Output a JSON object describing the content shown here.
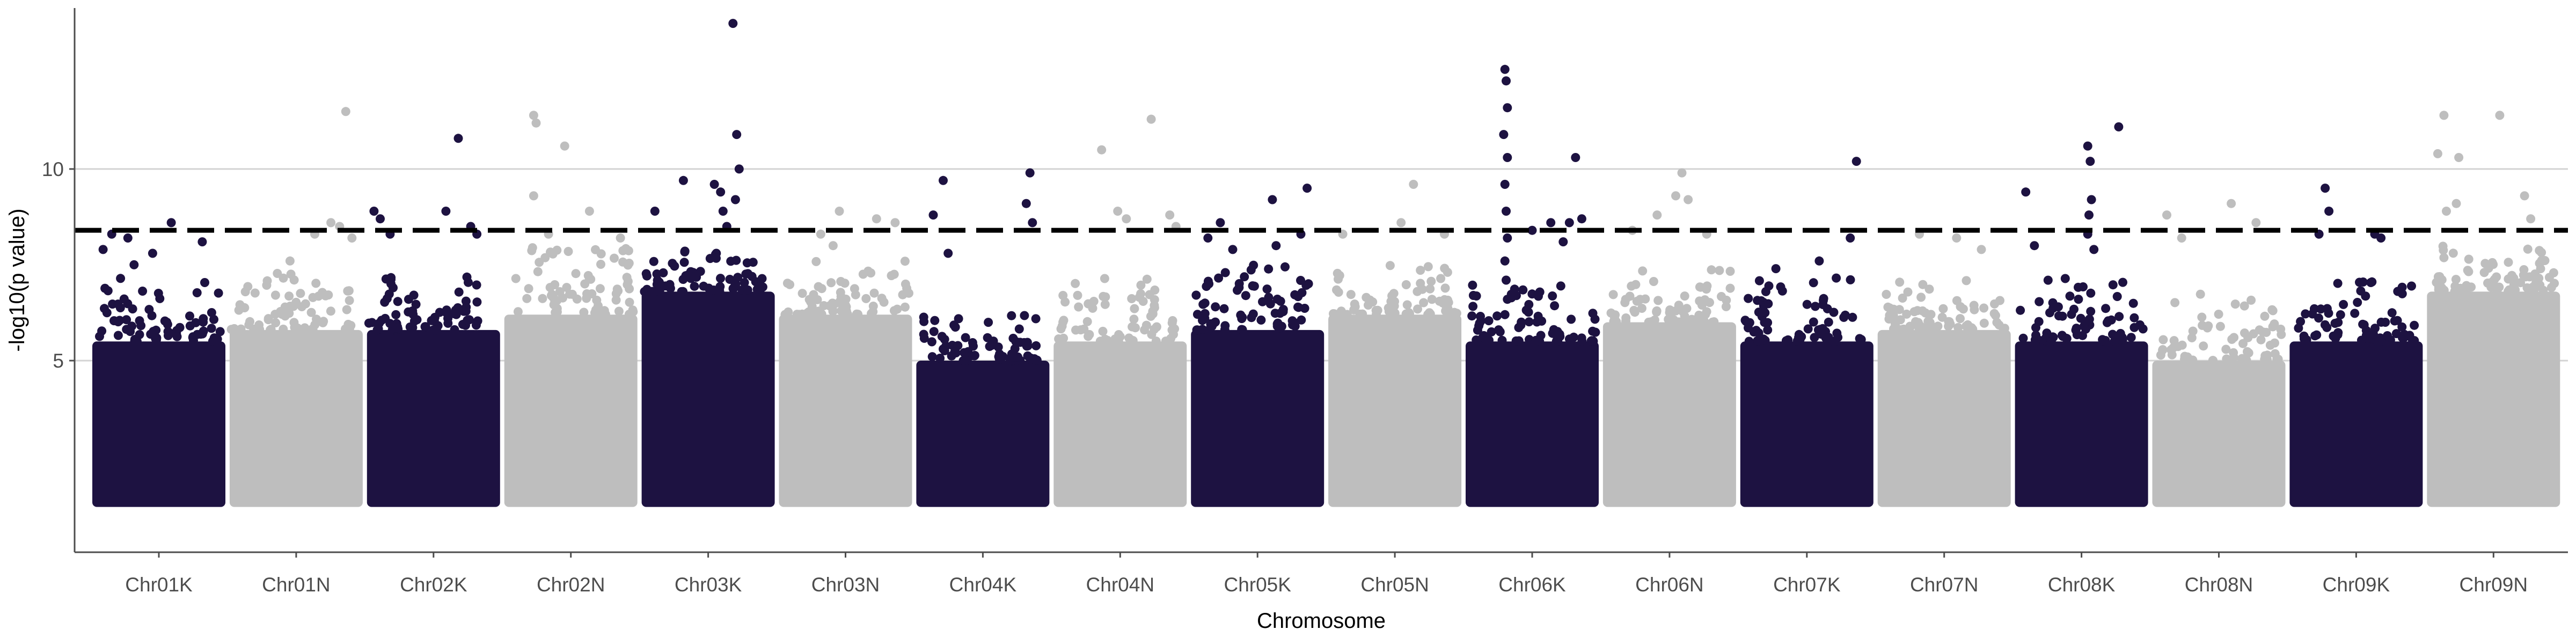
{
  "chart_data": {
    "type": "scatter",
    "subtype": "manhattan",
    "title": "",
    "xlabel": "Chromosome",
    "ylabel": "-log10(p value)",
    "ylim": [
      0,
      14.2
    ],
    "yticks": [
      5,
      10
    ],
    "ytick_labels": [
      "5",
      "10"
    ],
    "grid": "horizontal-major",
    "threshold": 8.4,
    "threshold_style": "dashed",
    "baseline": 1.3,
    "colors": {
      "dark": "#1d1241",
      "light": "#bebebe",
      "threshold": "#000000",
      "grid": "#d3d3d3",
      "axis": "#4d4d4d"
    },
    "categories": [
      "Chr01K",
      "Chr01N",
      "Chr02K",
      "Chr02N",
      "Chr03K",
      "Chr03N",
      "Chr04K",
      "Chr04N",
      "Chr05K",
      "Chr05N",
      "Chr06K",
      "Chr06N",
      "Chr07K",
      "Chr07N",
      "Chr08K",
      "Chr08N",
      "Chr09K",
      "Chr09N"
    ],
    "series": [
      {
        "name": "Chr01K",
        "color": "dark",
        "dense_top": 5.5,
        "upper_max": 7.2,
        "peaks": [
          [
            0.05,
            7.9
          ],
          [
            0.12,
            8.3
          ],
          [
            0.25,
            8.2
          ],
          [
            0.45,
            7.8
          ],
          [
            0.6,
            8.6
          ],
          [
            0.85,
            8.1
          ],
          [
            0.3,
            7.5
          ]
        ]
      },
      {
        "name": "Chr01N",
        "color": "light",
        "dense_top": 5.8,
        "upper_max": 7.4,
        "peaks": [
          [
            0.45,
            7.6
          ],
          [
            0.65,
            8.3
          ],
          [
            0.78,
            8.6
          ],
          [
            0.85,
            8.5
          ],
          [
            0.9,
            11.5
          ],
          [
            0.95,
            8.2
          ]
        ]
      },
      {
        "name": "Chr02K",
        "color": "dark",
        "dense_top": 5.8,
        "upper_max": 7.2,
        "peaks": [
          [
            0.02,
            8.9
          ],
          [
            0.07,
            8.7
          ],
          [
            0.15,
            8.3
          ],
          [
            0.6,
            8.9
          ],
          [
            0.7,
            10.8
          ],
          [
            0.8,
            8.5
          ],
          [
            0.85,
            8.3
          ]
        ]
      },
      {
        "name": "Chr02N",
        "color": "light",
        "dense_top": 6.2,
        "upper_max": 8.0,
        "peaks": [
          [
            0.2,
            11.4
          ],
          [
            0.22,
            11.2
          ],
          [
            0.2,
            9.3
          ],
          [
            0.45,
            10.6
          ],
          [
            0.32,
            8.3
          ],
          [
            0.65,
            8.9
          ],
          [
            0.9,
            8.2
          ]
        ]
      },
      {
        "name": "Chr03K",
        "color": "dark",
        "dense_top": 6.8,
        "upper_max": 8.0,
        "peaks": [
          [
            0.07,
            8.9
          ],
          [
            0.3,
            9.7
          ],
          [
            0.55,
            9.6
          ],
          [
            0.6,
            9.4
          ],
          [
            0.62,
            8.9
          ],
          [
            0.65,
            8.5
          ],
          [
            0.7,
            13.8
          ],
          [
            0.73,
            10.9
          ],
          [
            0.75,
            10.0
          ],
          [
            0.72,
            9.2
          ]
        ]
      },
      {
        "name": "Chr03N",
        "color": "light",
        "dense_top": 6.2,
        "upper_max": 7.8,
        "peaks": [
          [
            0.3,
            8.3
          ],
          [
            0.4,
            8.0
          ],
          [
            0.45,
            8.9
          ],
          [
            0.75,
            8.7
          ],
          [
            0.9,
            8.6
          ]
        ]
      },
      {
        "name": "Chr04K",
        "color": "dark",
        "dense_top": 5.0,
        "upper_max": 6.2,
        "peaks": [
          [
            0.1,
            8.8
          ],
          [
            0.18,
            9.7
          ],
          [
            0.22,
            7.8
          ],
          [
            0.85,
            9.1
          ],
          [
            0.88,
            9.9
          ],
          [
            0.9,
            8.6
          ]
        ]
      },
      {
        "name": "Chr04N",
        "color": "light",
        "dense_top": 5.5,
        "upper_max": 7.2,
        "peaks": [
          [
            0.35,
            10.5
          ],
          [
            0.48,
            8.9
          ],
          [
            0.55,
            8.7
          ],
          [
            0.75,
            11.3
          ],
          [
            0.9,
            8.8
          ],
          [
            0.95,
            8.5
          ]
        ]
      },
      {
        "name": "Chr05K",
        "color": "dark",
        "dense_top": 5.8,
        "upper_max": 7.5,
        "peaks": [
          [
            0.1,
            8.2
          ],
          [
            0.2,
            8.6
          ],
          [
            0.3,
            7.9
          ],
          [
            0.62,
            9.2
          ],
          [
            0.65,
            8.0
          ],
          [
            0.85,
            8.3
          ],
          [
            0.9,
            9.5
          ]
        ]
      },
      {
        "name": "Chr05N",
        "color": "light",
        "dense_top": 6.2,
        "upper_max": 7.5,
        "peaks": [
          [
            0.08,
            8.3
          ],
          [
            0.55,
            8.6
          ],
          [
            0.65,
            9.6
          ],
          [
            0.9,
            8.3
          ]
        ]
      },
      {
        "name": "Chr06K",
        "color": "dark",
        "dense_top": 5.5,
        "upper_max": 7.0,
        "peaks": [
          [
            0.28,
            12.6
          ],
          [
            0.29,
            12.3
          ],
          [
            0.3,
            11.6
          ],
          [
            0.27,
            10.9
          ],
          [
            0.3,
            10.3
          ],
          [
            0.28,
            9.6
          ],
          [
            0.29,
            8.9
          ],
          [
            0.3,
            8.2
          ],
          [
            0.28,
            7.6
          ],
          [
            0.29,
            7.1
          ],
          [
            0.3,
            6.6
          ],
          [
            0.28,
            6.2
          ],
          [
            0.5,
            8.4
          ],
          [
            0.65,
            8.6
          ],
          [
            0.75,
            8.1
          ],
          [
            0.85,
            10.3
          ],
          [
            0.8,
            8.6
          ],
          [
            0.9,
            8.7
          ]
        ]
      },
      {
        "name": "Chr06N",
        "color": "light",
        "dense_top": 6.0,
        "upper_max": 7.5,
        "peaks": [
          [
            0.2,
            8.4
          ],
          [
            0.4,
            8.8
          ],
          [
            0.55,
            9.3
          ],
          [
            0.6,
            9.9
          ],
          [
            0.65,
            9.2
          ],
          [
            0.8,
            8.3
          ]
        ]
      },
      {
        "name": "Chr07K",
        "color": "dark",
        "dense_top": 5.5,
        "upper_max": 7.2,
        "peaks": [
          [
            0.25,
            7.4
          ],
          [
            0.6,
            7.6
          ],
          [
            0.85,
            8.2
          ],
          [
            0.9,
            10.2
          ]
        ]
      },
      {
        "name": "Chr07N",
        "color": "light",
        "dense_top": 5.8,
        "upper_max": 7.2,
        "peaks": [
          [
            0.3,
            8.3
          ],
          [
            0.6,
            8.2
          ],
          [
            0.8,
            7.9
          ]
        ]
      },
      {
        "name": "Chr08K",
        "color": "dark",
        "dense_top": 5.5,
        "upper_max": 7.2,
        "peaks": [
          [
            0.05,
            9.4
          ],
          [
            0.12,
            8.0
          ],
          [
            0.55,
            10.6
          ],
          [
            0.57,
            10.2
          ],
          [
            0.58,
            9.2
          ],
          [
            0.56,
            8.8
          ],
          [
            0.55,
            8.3
          ],
          [
            0.6,
            7.9
          ],
          [
            0.8,
            11.1
          ]
        ]
      },
      {
        "name": "Chr08N",
        "color": "light",
        "dense_top": 5.0,
        "upper_max": 6.8,
        "peaks": [
          [
            0.08,
            8.8
          ],
          [
            0.2,
            8.2
          ],
          [
            0.6,
            9.1
          ],
          [
            0.8,
            8.6
          ]
        ]
      },
      {
        "name": "Chr09K",
        "color": "dark",
        "dense_top": 5.5,
        "upper_max": 7.2,
        "peaks": [
          [
            0.2,
            8.3
          ],
          [
            0.25,
            9.5
          ],
          [
            0.28,
            8.9
          ],
          [
            0.65,
            8.3
          ],
          [
            0.7,
            8.2
          ]
        ]
      },
      {
        "name": "Chr09N",
        "color": "light",
        "dense_top": 6.8,
        "upper_max": 8.0,
        "peaks": [
          [
            0.05,
            10.4
          ],
          [
            0.1,
            11.4
          ],
          [
            0.12,
            8.9
          ],
          [
            0.2,
            9.1
          ],
          [
            0.22,
            10.3
          ],
          [
            0.55,
            11.4
          ],
          [
            0.75,
            9.3
          ],
          [
            0.8,
            8.7
          ]
        ]
      }
    ]
  }
}
